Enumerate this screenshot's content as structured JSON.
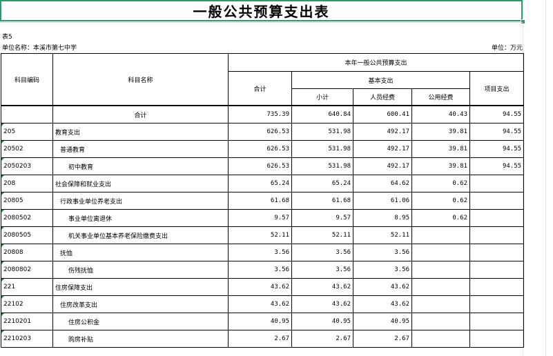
{
  "title": "一般公共预算支出表",
  "table_no": "表5",
  "unit_name": "单位名称：本溪市第七中学",
  "unit": "单位：万元",
  "headers": {
    "code": "科目编码",
    "name": "科目名称",
    "group": "本年一般公共预算支出",
    "total": "合计",
    "basic": "基本支出",
    "subtotal": "小计",
    "personnel": "人员经费",
    "public": "公用经费",
    "project": "项目支出"
  },
  "total_row": {
    "label": "合计",
    "total": "735.39",
    "subtotal": "640.84",
    "personnel": "600.41",
    "public": "40.43",
    "project": "94.55"
  },
  "rows": [
    {
      "code": "205",
      "name": "教育支出",
      "level": 0,
      "total": "626.53",
      "subtotal": "531.98",
      "personnel": "492.17",
      "public": "39.81",
      "project": "94.55"
    },
    {
      "code": "20502",
      "name": "普通教育",
      "level": 1,
      "total": "626.53",
      "subtotal": "531.98",
      "personnel": "492.17",
      "public": "39.81",
      "project": "94.55"
    },
    {
      "code": "2050203",
      "name": "初中教育",
      "level": 2,
      "total": "626.53",
      "subtotal": "531.98",
      "personnel": "492.17",
      "public": "39.81",
      "project": "94.55"
    },
    {
      "code": "208",
      "name": "社会保障和就业支出",
      "level": 0,
      "total": "65.24",
      "subtotal": "65.24",
      "personnel": "64.62",
      "public": "0.62",
      "project": ""
    },
    {
      "code": "20805",
      "name": "行政事业单位养老支出",
      "level": 1,
      "total": "61.68",
      "subtotal": "61.68",
      "personnel": "61.06",
      "public": "0.62",
      "project": ""
    },
    {
      "code": "2080502",
      "name": "事业单位离退休",
      "level": 2,
      "total": "9.57",
      "subtotal": "9.57",
      "personnel": "8.95",
      "public": "0.62",
      "project": ""
    },
    {
      "code": "2080505",
      "name": "机关事业单位基本养老保险缴费支出",
      "level": 2,
      "total": "52.11",
      "subtotal": "52.11",
      "personnel": "52.11",
      "public": "",
      "project": ""
    },
    {
      "code": "20808",
      "name": "抚恤",
      "level": 1,
      "total": "3.56",
      "subtotal": "3.56",
      "personnel": "3.56",
      "public": "",
      "project": ""
    },
    {
      "code": "2080802",
      "name": "伤残抚恤",
      "level": 2,
      "total": "3.56",
      "subtotal": "3.56",
      "personnel": "3.56",
      "public": "",
      "project": ""
    },
    {
      "code": "221",
      "name": "住房保障支出",
      "level": 0,
      "total": "43.62",
      "subtotal": "43.62",
      "personnel": "43.62",
      "public": "",
      "project": ""
    },
    {
      "code": "22102",
      "name": "住房改革支出",
      "level": 1,
      "total": "43.62",
      "subtotal": "43.62",
      "personnel": "43.62",
      "public": "",
      "project": ""
    },
    {
      "code": "2210201",
      "name": "住房公积金",
      "level": 2,
      "total": "40.95",
      "subtotal": "40.95",
      "personnel": "40.95",
      "public": "",
      "project": ""
    },
    {
      "code": "2210203",
      "name": "购房补贴",
      "level": 2,
      "total": "2.67",
      "subtotal": "2.67",
      "personnel": "2.67",
      "public": "",
      "project": ""
    }
  ],
  "colors": {
    "selection": "#21a366",
    "cell_marker": "#1e8449",
    "border": "#000000"
  }
}
